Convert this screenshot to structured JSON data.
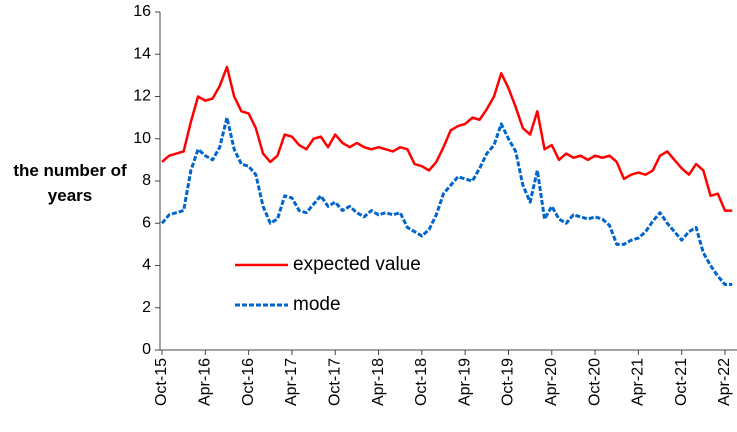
{
  "chart_data": {
    "type": "line",
    "ylabel": "the number of years",
    "categories": [
      "Oct-15",
      null,
      null,
      null,
      null,
      null,
      "Apr-16",
      null,
      null,
      null,
      null,
      null,
      "Oct-16",
      null,
      null,
      null,
      null,
      null,
      "Apr-17",
      null,
      null,
      null,
      null,
      null,
      "Oct-17",
      null,
      null,
      null,
      null,
      null,
      "Apr-18",
      null,
      null,
      null,
      null,
      null,
      "Oct-18",
      null,
      null,
      null,
      null,
      null,
      "Apr-19",
      null,
      null,
      null,
      null,
      null,
      "Oct-19",
      null,
      null,
      null,
      null,
      null,
      "Apr-20",
      null,
      null,
      null,
      null,
      null,
      "Oct-20",
      null,
      null,
      null,
      null,
      null,
      "Apr-21",
      null,
      null,
      null,
      null,
      null,
      "Oct-21",
      null,
      null,
      null,
      null,
      null,
      "Apr-22",
      null
    ],
    "series": [
      {
        "name": "expected value",
        "color": "#ff0000",
        "dash": false,
        "values": [
          8.9,
          9.2,
          9.3,
          9.4,
          10.8,
          12.0,
          11.8,
          11.9,
          12.5,
          13.4,
          12.0,
          11.3,
          11.2,
          10.5,
          9.3,
          8.9,
          9.2,
          10.2,
          10.1,
          9.7,
          9.5,
          10.0,
          10.1,
          9.6,
          10.2,
          9.8,
          9.6,
          9.8,
          9.6,
          9.5,
          9.6,
          9.5,
          9.4,
          9.6,
          9.5,
          8.8,
          8.7,
          8.5,
          8.9,
          9.6,
          10.4,
          10.6,
          10.7,
          11.0,
          10.9,
          11.4,
          12.0,
          13.1,
          12.4,
          11.5,
          10.5,
          10.2,
          11.3,
          9.5,
          9.7,
          9.0,
          9.3,
          9.1,
          9.2,
          9.0,
          9.2,
          9.1,
          9.2,
          8.9,
          8.1,
          8.3,
          8.4,
          8.3,
          8.5,
          9.2,
          9.4,
          9.0,
          8.6,
          8.3,
          8.8,
          8.5,
          7.3,
          7.4,
          6.6,
          6.6
        ]
      },
      {
        "name": "mode",
        "color": "#0066cc",
        "dash": true,
        "values": [
          6.0,
          6.4,
          6.5,
          6.6,
          8.5,
          9.5,
          9.2,
          9.0,
          9.6,
          11.0,
          9.5,
          8.8,
          8.7,
          8.3,
          6.8,
          6.0,
          6.2,
          7.3,
          7.2,
          6.6,
          6.5,
          6.9,
          7.3,
          6.8,
          7.0,
          6.6,
          6.8,
          6.5,
          6.3,
          6.6,
          6.4,
          6.5,
          6.4,
          6.5,
          5.8,
          5.6,
          5.4,
          5.7,
          6.4,
          7.4,
          7.8,
          8.2,
          8.1,
          8.0,
          8.6,
          9.3,
          9.7,
          10.7,
          10.0,
          9.4,
          7.8,
          7.0,
          8.5,
          6.2,
          6.8,
          6.2,
          6.0,
          6.4,
          6.3,
          6.2,
          6.3,
          6.2,
          5.9,
          5.0,
          5.0,
          5.2,
          5.3,
          5.6,
          6.1,
          6.5,
          6.0,
          5.6,
          5.2,
          5.6,
          5.8,
          4.6,
          4.0,
          3.5,
          3.1,
          3.1
        ]
      }
    ],
    "ylim": [
      0,
      16
    ],
    "yticks": [
      0,
      2,
      4,
      6,
      8,
      10,
      12,
      14,
      16
    ],
    "grid": false
  }
}
